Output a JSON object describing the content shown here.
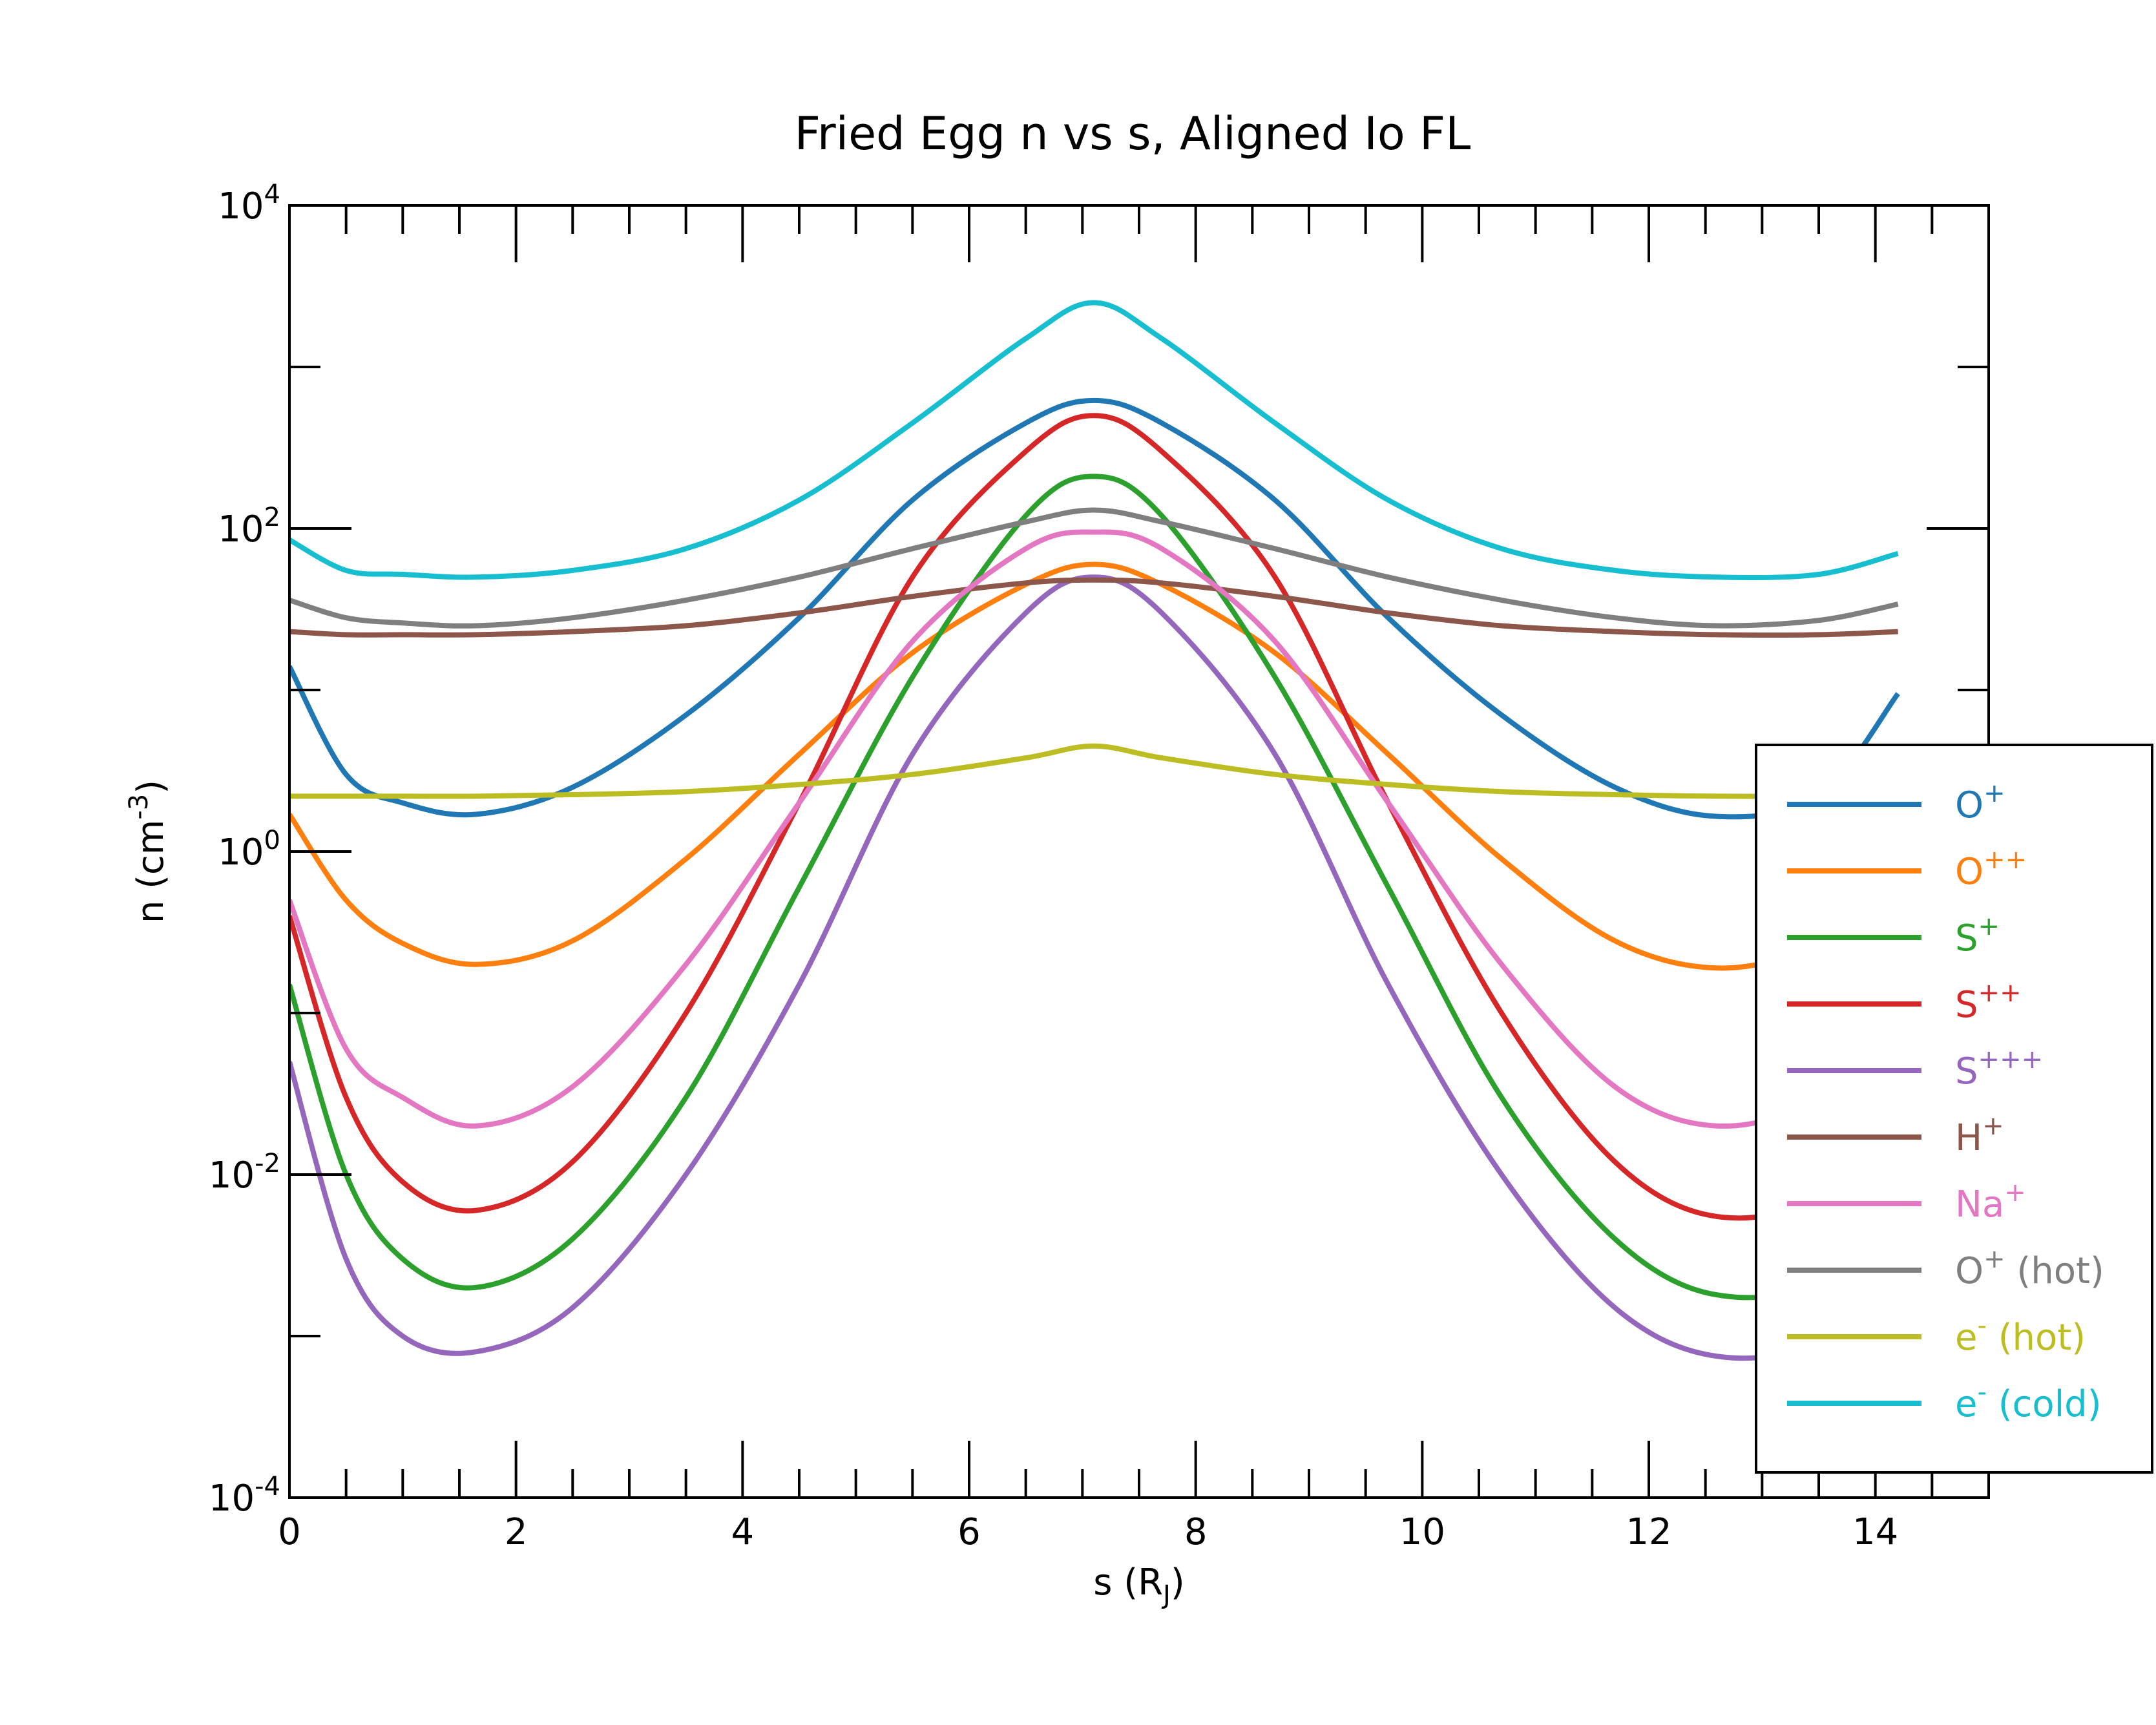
{
  "chart_data": {
    "type": "line",
    "title": "Fried Egg n vs s, Aligned Io FL",
    "xlabel": {
      "base": "s (R",
      "sub": "J",
      "tail": ")"
    },
    "ylabel": {
      "base": "n (cm",
      "sup": "-3",
      "tail": ")"
    },
    "xlim": [
      0,
      15
    ],
    "ylim": [
      0.0001,
      10000
    ],
    "yscale": "log",
    "x_ticks": [
      "0",
      "2",
      "4",
      "6",
      "8",
      "10",
      "12",
      "14"
    ],
    "y_ticks": [
      {
        "base": "10",
        "exp": "4",
        "value": 10000
      },
      {
        "base": "10",
        "exp": "2",
        "value": 100
      },
      {
        "base": "10",
        "exp": "0",
        "value": 1
      },
      {
        "base": "10",
        "exp": "-2",
        "value": 0.01
      },
      {
        "base": "10",
        "exp": "-4",
        "value": 0.0001
      }
    ],
    "legend_position": "right",
    "x": [
      0,
      0.5,
      1,
      1.65,
      2.5,
      3.5,
      4.5,
      5.5,
      6.5,
      7.1,
      7.7,
      8.7,
      9.7,
      10.7,
      11.7,
      12.6,
      13.5,
      14.2
    ],
    "series": [
      {
        "name": "O",
        "sup": "+",
        "color": "#1f77b4",
        "values": [
          14,
          3,
          2,
          1.7,
          2.5,
          7,
          28,
          150,
          450,
          620,
          450,
          150,
          28,
          7,
          2.5,
          1.65,
          2.2,
          9.5
        ]
      },
      {
        "name": "O",
        "sup": "++",
        "color": "#ff7f0e",
        "values": [
          1.7,
          0.5,
          0.27,
          0.2,
          0.28,
          0.9,
          4,
          17,
          45,
          60,
          45,
          17,
          4,
          0.9,
          0.28,
          0.19,
          0.25,
          0.4
        ]
      },
      {
        "name": "S",
        "sup": "+",
        "color": "#2ca02c",
        "values": [
          0.15,
          0.01,
          0.003,
          0.002,
          0.004,
          0.03,
          0.6,
          12,
          120,
          210,
          120,
          12,
          0.6,
          0.03,
          0.004,
          0.0018,
          0.0025,
          0.02
        ]
      },
      {
        "name": "S",
        "sup": "++",
        "color": "#d62728",
        "values": [
          0.4,
          0.03,
          0.009,
          0.006,
          0.012,
          0.1,
          2,
          50,
          300,
          500,
          300,
          50,
          2,
          0.1,
          0.012,
          0.0055,
          0.008,
          0.05
        ]
      },
      {
        "name": "S",
        "sup": "+++",
        "color": "#9467bd",
        "values": [
          0.05,
          0.003,
          0.001,
          0.0008,
          0.0015,
          0.01,
          0.15,
          4,
          30,
          50,
          30,
          4,
          0.15,
          0.01,
          0.0015,
          0.00075,
          0.001,
          0.005
        ]
      },
      {
        "name": "H",
        "sup": "+",
        "color": "#8c564b",
        "values": [
          23,
          22,
          22,
          22,
          23,
          25,
          30,
          38,
          46,
          48,
          46,
          38,
          30,
          25,
          23,
          22,
          22,
          23
        ]
      },
      {
        "name": "Na",
        "sup": "+",
        "color": "#e377c2",
        "values": [
          0.5,
          0.06,
          0.03,
          0.02,
          0.035,
          0.2,
          2,
          20,
          75,
          95,
          75,
          20,
          2,
          0.2,
          0.035,
          0.02,
          0.03,
          0.1
        ]
      },
      {
        "name": "O",
        "sup": "+",
        "suffix": " (hot)",
        "color": "#7f7f7f",
        "values": [
          36,
          28,
          26,
          25,
          28,
          36,
          50,
          75,
          110,
          130,
          110,
          75,
          50,
          36,
          28,
          25,
          27,
          34
        ]
      },
      {
        "name": "e",
        "sup": "-",
        "suffix": " (hot)",
        "color": "#bcbd22",
        "values": [
          2.2,
          2.2,
          2.2,
          2.2,
          2.25,
          2.35,
          2.6,
          3,
          3.8,
          4.5,
          3.8,
          3,
          2.6,
          2.35,
          2.25,
          2.2,
          2.2,
          2.2
        ]
      },
      {
        "name": "e",
        "sup": "-",
        "suffix": " (cold)",
        "color": "#17becf",
        "values": [
          85,
          55,
          52,
          50,
          55,
          75,
          150,
          450,
          1500,
          2500,
          1500,
          450,
          150,
          75,
          55,
          50,
          52,
          70
        ]
      }
    ]
  }
}
